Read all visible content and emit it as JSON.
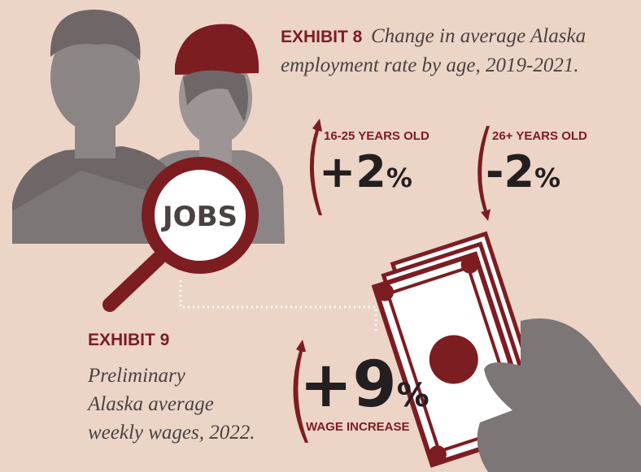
{
  "exhibit_8": {
    "label": "EXHIBIT 8",
    "caption_lines": [
      "Change in average Alaska",
      "employment rate by age, 2019-2021."
    ],
    "groups": [
      {
        "label": "16-25 YEARS OLD",
        "figure": "+2",
        "unit": "%"
      },
      {
        "label": "26+ YEARS OLD",
        "figure": "-2",
        "unit": "%"
      }
    ]
  },
  "magnifier": {
    "label": "JOBS"
  },
  "exhibit_9": {
    "label": "EXHIBIT 9",
    "caption_lines": [
      "Preliminary",
      "Alaska average",
      "weekly wages, 2022."
    ],
    "figure": "+9",
    "unit": "%",
    "figure_label": "WAGE INCREASE"
  }
}
